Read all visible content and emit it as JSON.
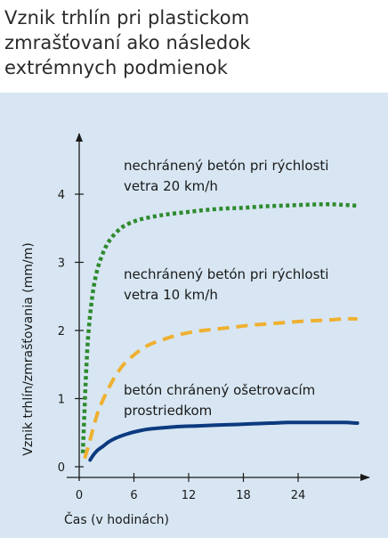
{
  "header": {
    "title_lines": [
      "Vznik trhlín pri plastickom",
      "zmrašťovaní ako následok",
      "extrémnych podmienok"
    ]
  },
  "chart_data": {
    "type": "line",
    "title": "Vznik trhlín pri plastickom zmrašťovaní ako následok extrémnych podmienok",
    "xlabel": "Čas (v hodinách)",
    "ylabel": "Vznik trhlín/zmrašťovania (mm/m)",
    "xlim": [
      0,
      31
    ],
    "ylim": [
      0,
      4.5
    ],
    "xticks": [
      0,
      6,
      12,
      18,
      24
    ],
    "yticks": [
      0,
      1,
      2,
      3,
      4
    ],
    "grid": false,
    "series": [
      {
        "name": "nechránený betón pri rýchlosti vetra 20 km/h",
        "label_lines": [
          "nechránený betón pri rýchlosti",
          "vetra 20 km/h"
        ],
        "color": "#2e8a2e",
        "style": "dotted",
        "x": [
          0.4,
          0.6,
          0.8,
          1.0,
          1.3,
          1.6,
          2.0,
          2.5,
          3.0,
          3.6,
          4.3,
          5.0,
          6.0,
          7.0,
          8.5,
          10.0,
          12.0,
          14.0,
          16.0,
          18.0,
          20.0,
          22.0,
          24.0,
          26.0,
          28.0,
          30.5
        ],
        "y": [
          0.2,
          0.9,
          1.5,
          1.95,
          2.35,
          2.65,
          2.9,
          3.1,
          3.25,
          3.37,
          3.47,
          3.54,
          3.6,
          3.64,
          3.68,
          3.71,
          3.74,
          3.77,
          3.79,
          3.8,
          3.82,
          3.83,
          3.84,
          3.85,
          3.85,
          3.83
        ]
      },
      {
        "name": "nechránený betón pri rýchlosti vetra 10 km/h",
        "label_lines": [
          "nechránený betón pri rýchlosti",
          "vetra 10 km/h"
        ],
        "color": "#f0b030",
        "style": "dashed",
        "x": [
          0.6,
          1.0,
          1.5,
          2.0,
          2.6,
          3.3,
          4.0,
          5.0,
          6.0,
          7.0,
          8.0,
          9.5,
          11.0,
          13.0,
          15.0,
          17.0,
          19.0,
          21.0,
          23.0,
          25.0,
          27.0,
          29.0,
          30.5
        ],
        "y": [
          0.12,
          0.3,
          0.55,
          0.78,
          0.98,
          1.17,
          1.34,
          1.52,
          1.64,
          1.74,
          1.81,
          1.88,
          1.94,
          1.99,
          2.02,
          2.05,
          2.08,
          2.1,
          2.12,
          2.14,
          2.15,
          2.17,
          2.17
        ]
      },
      {
        "name": "betón chránený ošetrovacím prostriedkom",
        "label_lines": [
          "betón chránený ošetrovacím",
          "prostriedkom"
        ],
        "color": "#0c3a80",
        "style": "solid",
        "x": [
          1.2,
          1.6,
          2.0,
          2.6,
          3.3,
          4.0,
          5.0,
          6.0,
          7.5,
          9.0,
          11.0,
          13.0,
          15.0,
          17.0,
          19.0,
          21.0,
          23.0,
          25.0,
          27.0,
          29.0,
          30.5
        ],
        "y": [
          0.1,
          0.18,
          0.24,
          0.3,
          0.37,
          0.42,
          0.47,
          0.51,
          0.55,
          0.57,
          0.59,
          0.6,
          0.61,
          0.62,
          0.63,
          0.64,
          0.65,
          0.65,
          0.65,
          0.65,
          0.64
        ]
      }
    ]
  }
}
